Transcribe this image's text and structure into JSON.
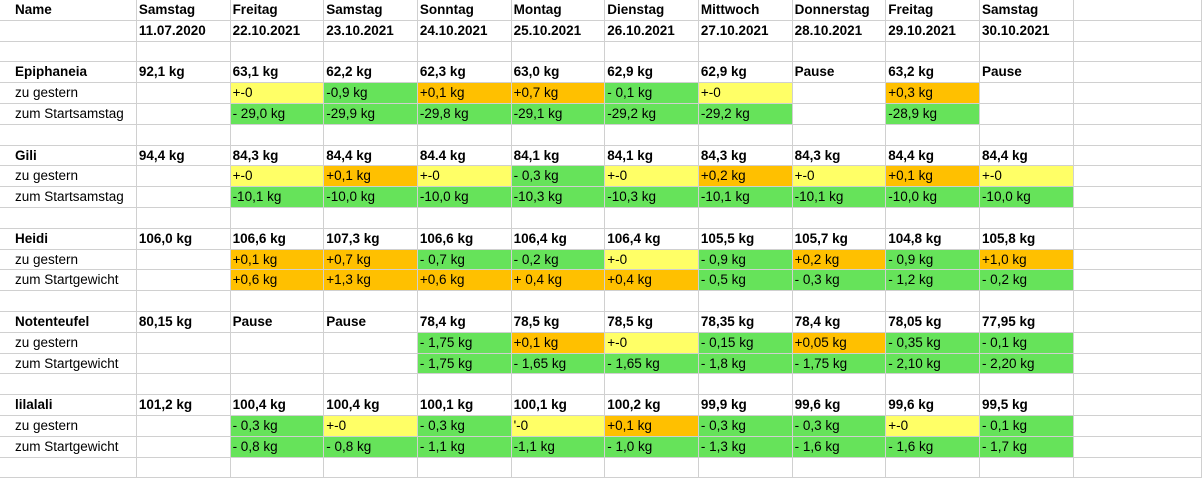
{
  "colors": {
    "yellow": "#ffff66",
    "orange": "#ffc000",
    "green": "#66e35a"
  },
  "header": {
    "row1": [
      "Name",
      "Samstag",
      "Freitag",
      "Samstag",
      "Sonntag",
      "Montag",
      "Dienstag",
      "Mittwoch",
      "Donnerstag",
      "Freitag",
      "Samstag"
    ],
    "row2": [
      "",
      "11.07.2020",
      "22.10.2021",
      "23.10.2021",
      "24.10.2021",
      "25.10.2021",
      "26.10.2021",
      "27.10.2021",
      "28.10.2021",
      "29.10.2021",
      "30.10.2021"
    ]
  },
  "people": [
    {
      "name": "Epiphaneia",
      "start": "92,1 kg",
      "weights": [
        "63,1 kg",
        "62,2 kg",
        "62,3 kg",
        "63,0 kg",
        "62,9 kg",
        "62,9 kg",
        "Pause",
        "63,2 kg",
        "Pause"
      ],
      "row2_label": "zu gestern",
      "row2": [
        [
          "+-0",
          "y"
        ],
        [
          "-0,9 kg",
          "g"
        ],
        [
          "+0,1 kg",
          "o"
        ],
        [
          "+0,7 kg",
          "o"
        ],
        [
          "- 0,1 kg",
          "g"
        ],
        [
          "+-0",
          "y"
        ],
        [
          "",
          ""
        ],
        [
          "+0,3 kg",
          "o"
        ],
        [
          "",
          ""
        ]
      ],
      "row3_label": "zum Startsamstag",
      "row3": [
        [
          "- 29,0 kg",
          "g"
        ],
        [
          "-29,9 kg",
          "g"
        ],
        [
          "-29,8 kg",
          "g"
        ],
        [
          "-29,1 kg",
          "g"
        ],
        [
          "-29,2 kg",
          "g"
        ],
        [
          "-29,2 kg",
          "g"
        ],
        [
          "",
          ""
        ],
        [
          "-28,9 kg",
          "g"
        ],
        [
          "",
          ""
        ]
      ]
    },
    {
      "name": "Gili",
      "start": "94,4 kg",
      "weights": [
        "84,3 kg",
        "84,4 kg",
        "84.4 kg",
        "84,1 kg",
        "84,1 kg",
        "84,3 kg",
        "84,3 kg",
        "84,4 kg",
        "84,4 kg"
      ],
      "row2_label": "zu gestern",
      "row2": [
        [
          "+-0",
          "y"
        ],
        [
          "+0,1 kg",
          "o"
        ],
        [
          "+-0",
          "y"
        ],
        [
          "- 0,3 kg",
          "g"
        ],
        [
          "+-0",
          "y"
        ],
        [
          "+0,2 kg",
          "o"
        ],
        [
          "+-0",
          "y"
        ],
        [
          "+0,1 kg",
          "o"
        ],
        [
          "+-0",
          "y"
        ]
      ],
      "row3_label": "zum Startsamstag",
      "row3": [
        [
          "-10,1 kg",
          "g"
        ],
        [
          "-10,0 kg",
          "g"
        ],
        [
          "-10,0 kg",
          "g"
        ],
        [
          "-10,3 kg",
          "g"
        ],
        [
          "-10,3 kg",
          "g"
        ],
        [
          "-10,1 kg",
          "g"
        ],
        [
          "-10,1 kg",
          "g"
        ],
        [
          "-10,0 kg",
          "g"
        ],
        [
          "-10,0 kg",
          "g"
        ]
      ]
    },
    {
      "name": "Heidi",
      "start": "106,0 kg",
      "weights": [
        "106,6 kg",
        "107,3 kg",
        "106,6 kg",
        "106,4 kg",
        "106,4 kg",
        "105,5 kg",
        "105,7 kg",
        "104,8 kg",
        "105,8 kg"
      ],
      "row2_label": "zu gestern",
      "row2": [
        [
          "+0,1 kg",
          "o"
        ],
        [
          "+0,7 kg",
          "o"
        ],
        [
          "- 0,7 kg",
          "g"
        ],
        [
          "- 0,2 kg",
          "g"
        ],
        [
          "+-0",
          "y"
        ],
        [
          "- 0,9 kg",
          "g"
        ],
        [
          "+0,2 kg",
          "o"
        ],
        [
          "- 0,9 kg",
          "g"
        ],
        [
          "+1,0 kg",
          "o"
        ]
      ],
      "row3_label": "zum Startgewicht",
      "row3": [
        [
          "+0,6 kg",
          "o"
        ],
        [
          "+1,3 kg",
          "o"
        ],
        [
          "+0,6 kg",
          "o"
        ],
        [
          "+ 0,4 kg",
          "o"
        ],
        [
          "+0,4 kg",
          "o"
        ],
        [
          "- 0,5 kg",
          "g"
        ],
        [
          "- 0,3 kg",
          "g"
        ],
        [
          "- 1,2 kg",
          "g"
        ],
        [
          "- 0,2 kg",
          "g"
        ]
      ]
    },
    {
      "name": "Notenteufel",
      "start": "80,15 kg",
      "weights": [
        "Pause",
        "Pause",
        "78,4 kg",
        "78,5 kg",
        "78,5 kg",
        "78,35 kg",
        "78,4 kg",
        "78,05 kg",
        "77,95 kg"
      ],
      "row2_label": "zu gestern",
      "row2": [
        [
          "",
          ""
        ],
        [
          "",
          ""
        ],
        [
          "- 1,75 kg",
          "g"
        ],
        [
          "+0,1 kg",
          "o"
        ],
        [
          "+-0",
          "y"
        ],
        [
          "- 0,15 kg",
          "g"
        ],
        [
          "+0,05 kg",
          "o"
        ],
        [
          "- 0,35 kg",
          "g"
        ],
        [
          "- 0,1 kg",
          "g"
        ]
      ],
      "row3_label": "zum Startgewicht",
      "row3": [
        [
          "",
          ""
        ],
        [
          "",
          ""
        ],
        [
          "- 1,75 kg",
          "g"
        ],
        [
          "- 1,65 kg",
          "g"
        ],
        [
          "- 1,65 kg",
          "g"
        ],
        [
          "- 1,8 kg",
          "g"
        ],
        [
          "- 1,75 kg",
          "g"
        ],
        [
          "- 2,10 kg",
          "g"
        ],
        [
          "- 2,20 kg",
          "g"
        ]
      ]
    },
    {
      "name": "lilalali",
      "start": "101,2 kg",
      "weights": [
        "100,4 kg",
        "100,4 kg",
        "100,1 kg",
        "100,1 kg",
        "100,2 kg",
        "99,9 kg",
        "99,6 kg",
        "99,6 kg",
        "99,5 kg"
      ],
      "row2_label": "zu gestern",
      "row2": [
        [
          "- 0,3 kg",
          "g"
        ],
        [
          "+-0",
          "y"
        ],
        [
          "- 0,3 kg",
          "g"
        ],
        [
          "'-0",
          "y"
        ],
        [
          "+0,1 kg",
          "o"
        ],
        [
          "- 0,3 kg",
          "g"
        ],
        [
          "- 0,3 kg",
          "g"
        ],
        [
          "+-0",
          "y"
        ],
        [
          "- 0,1 kg",
          "g"
        ]
      ],
      "row3_label": "zum Startgewicht",
      "row3": [
        [
          "- 0,8 kg",
          "g"
        ],
        [
          "- 0,8 kg",
          "g"
        ],
        [
          "- 1,1 kg",
          "g"
        ],
        [
          "-1,1 kg",
          "g"
        ],
        [
          "- 1,0 kg",
          "g"
        ],
        [
          "- 1,3 kg",
          "g"
        ],
        [
          "- 1,6 kg",
          "g"
        ],
        [
          "- 1,6 kg",
          "g"
        ],
        [
          "- 1,7 kg",
          "g"
        ]
      ]
    }
  ]
}
